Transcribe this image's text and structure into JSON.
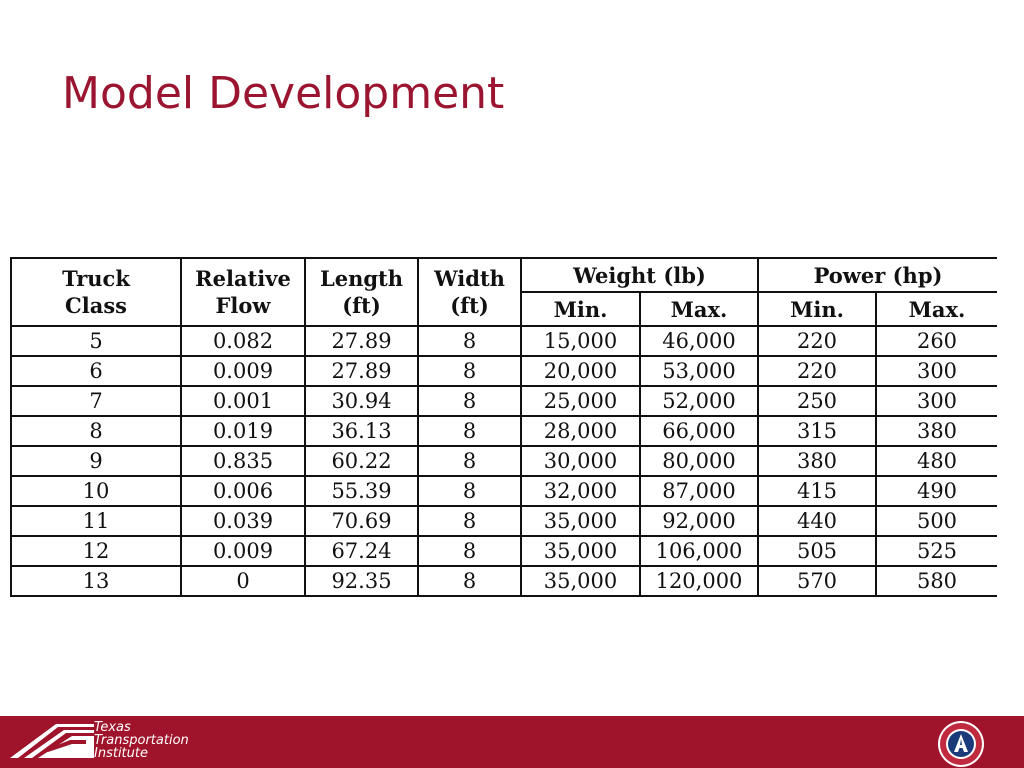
{
  "slide": {
    "title": "Model Development"
  },
  "table": {
    "headers": {
      "truck_class": [
        "Truck",
        "Class"
      ],
      "relative_flow": [
        "Relative",
        "Flow"
      ],
      "length": [
        "Length",
        "(ft)"
      ],
      "width": [
        "Width",
        "(ft)"
      ],
      "weight": "Weight (lb)",
      "power": "Power (hp)",
      "min": "Min.",
      "max": "Max."
    },
    "rows": [
      [
        "5",
        "0.082",
        "27.89",
        "8",
        "15,000",
        "46,000",
        "220",
        "260"
      ],
      [
        "6",
        "0.009",
        "27.89",
        "8",
        "20,000",
        "53,000",
        "220",
        "300"
      ],
      [
        "7",
        "0.001",
        "30.94",
        "8",
        "25,000",
        "52,000",
        "250",
        "300"
      ],
      [
        "8",
        "0.019",
        "36.13",
        "8",
        "28,000",
        "66,000",
        "315",
        "380"
      ],
      [
        "9",
        "0.835",
        "60.22",
        "8",
        "30,000",
        "80,000",
        "380",
        "480"
      ],
      [
        "10",
        "0.006",
        "55.39",
        "8",
        "32,000",
        "87,000",
        "415",
        "490"
      ],
      [
        "11",
        "0.039",
        "70.69",
        "8",
        "35,000",
        "92,000",
        "440",
        "500"
      ],
      [
        "12",
        "0.009",
        "67.24",
        "8",
        "35,000",
        "106,000",
        "505",
        "525"
      ],
      [
        "13",
        "0",
        "92.35",
        "8",
        "35,000",
        "120,000",
        "570",
        "580"
      ]
    ]
  },
  "footer": {
    "logo_lines": [
      "Texas",
      "Transportation",
      "Institute"
    ],
    "brand_color": "#a0142b",
    "title_color": "#9b1530",
    "seal_icon": "university-seal-icon"
  }
}
